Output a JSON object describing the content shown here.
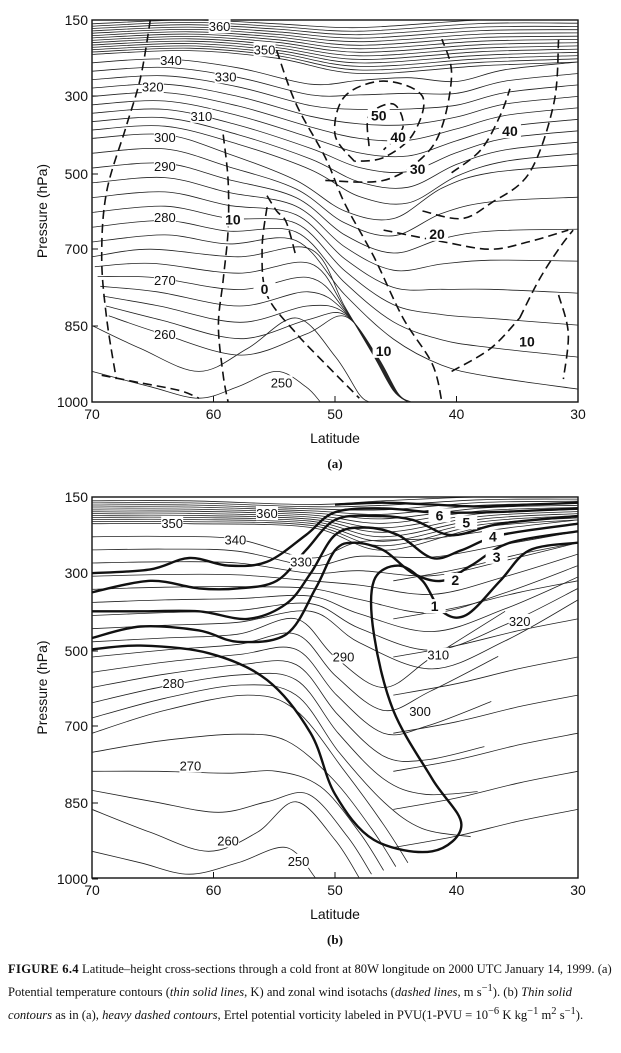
{
  "figure_panels": [
    {
      "panel_label": "(a)",
      "xlabel": "Latitude",
      "ylabel": "Pressure (hPa)",
      "xticks": [
        70,
        60,
        50,
        40,
        30
      ],
      "yticks": [
        150,
        300,
        500,
        700,
        850,
        1000
      ],
      "theta_labels": [
        {
          "text": "360",
          "lat": 59.5,
          "p": 166
        },
        {
          "text": "350",
          "lat": 55.8,
          "p": 212
        },
        {
          "text": "340",
          "lat": 63.5,
          "p": 233
        },
        {
          "text": "330",
          "lat": 59.0,
          "p": 265
        },
        {
          "text": "320",
          "lat": 65.0,
          "p": 285
        },
        {
          "text": "310",
          "lat": 61.0,
          "p": 356
        },
        {
          "text": "300",
          "lat": 64.0,
          "p": 410
        },
        {
          "text": "290",
          "lat": 64.0,
          "p": 485
        },
        {
          "text": "280",
          "lat": 64.0,
          "p": 620
        },
        {
          "text": "270",
          "lat": 64.0,
          "p": 764
        },
        {
          "text": "260",
          "lat": 64.0,
          "p": 870
        },
        {
          "text": "250",
          "lat": 54.4,
          "p": 965
        }
      ],
      "wind_labels": [
        {
          "text": "50",
          "lat": 46.4,
          "p": 355
        },
        {
          "text": "40",
          "lat": 44.8,
          "p": 410
        },
        {
          "text": "30",
          "lat": 43.2,
          "p": 492
        },
        {
          "text": "20",
          "lat": 41.6,
          "p": 665
        },
        {
          "text": "10",
          "lat": 58.4,
          "p": 627
        },
        {
          "text": "0",
          "lat": 55.8,
          "p": 782
        },
        {
          "text": "10",
          "lat": 46.0,
          "p": 903
        },
        {
          "text": "10",
          "lat": 34.2,
          "p": 885
        },
        {
          "text": "40",
          "lat": 35.6,
          "p": 395
        }
      ]
    },
    {
      "panel_label": "(b)",
      "xlabel": "Latitude",
      "ylabel": "Pressure (hPa)",
      "xticks": [
        70,
        60,
        50,
        40,
        30
      ],
      "yticks": [
        150,
        300,
        500,
        700,
        850,
        1000
      ],
      "theta_labels": [
        {
          "text": "360",
          "lat": 55.6,
          "p": 186
        },
        {
          "text": "350",
          "lat": 63.4,
          "p": 205
        },
        {
          "text": "340",
          "lat": 58.2,
          "p": 238
        },
        {
          "text": "330",
          "lat": 52.8,
          "p": 281
        },
        {
          "text": "320",
          "lat": 34.8,
          "p": 428
        },
        {
          "text": "310",
          "lat": 41.5,
          "p": 515
        },
        {
          "text": "300",
          "lat": 43.0,
          "p": 665
        },
        {
          "text": "290",
          "lat": 49.3,
          "p": 520
        },
        {
          "text": "280",
          "lat": 63.3,
          "p": 590
        },
        {
          "text": "270",
          "lat": 61.9,
          "p": 781
        },
        {
          "text": "260",
          "lat": 58.8,
          "p": 928
        },
        {
          "text": "250",
          "lat": 53.0,
          "p": 968
        }
      ],
      "pv_labels": [
        {
          "text": "1",
          "lat": 41.8,
          "p": 390
        },
        {
          "text": "2",
          "lat": 40.1,
          "p": 323
        },
        {
          "text": "3",
          "lat": 36.7,
          "p": 272
        },
        {
          "text": "4",
          "lat": 37.0,
          "p": 232
        },
        {
          "text": "5",
          "lat": 39.2,
          "p": 204
        },
        {
          "text": "6",
          "lat": 41.4,
          "p": 190
        }
      ]
    }
  ],
  "chart_data": [
    {
      "type": "contour",
      "panel": "(a)",
      "xlabel": "Latitude",
      "ylabel": "Pressure (hPa)",
      "xlim": [
        70,
        30
      ],
      "ylim": [
        1000,
        150
      ],
      "fields": [
        {
          "description": "Potential temperature contours (K)",
          "levels": [
            250,
            260,
            270,
            280,
            290,
            300,
            310,
            320,
            330,
            340,
            350,
            360
          ]
        },
        {
          "description": "Zonal wind isotachs (m s-1)",
          "levels": [
            0,
            10,
            20,
            30,
            40,
            50
          ]
        }
      ]
    },
    {
      "type": "contour",
      "panel": "(b)",
      "xlabel": "Latitude",
      "ylabel": "Pressure (hPa)",
      "xlim": [
        70,
        30
      ],
      "ylim": [
        1000,
        150
      ],
      "fields": [
        {
          "description": "Potential temperature contours (K)",
          "levels": [
            250,
            260,
            270,
            280,
            290,
            300,
            310,
            320,
            330,
            340,
            350,
            360
          ]
        },
        {
          "description": "Ertel potential vorticity (PVU)",
          "levels": [
            1,
            2,
            3,
            4,
            5,
            6
          ]
        }
      ]
    }
  ],
  "caption": {
    "title": "FIGURE 6.4",
    "part1": "Latitude–height cross-sections through a cold front at 80W longitude on 2000 UTC January 14, 1999. (a) Potential temperature contours (",
    "em1": "thin solid lines",
    "part2": ", K) and zonal wind isotachs (",
    "em2": "dashed lines",
    "part3": ", m s",
    "sup1": "−1",
    "part4": "). (b) ",
    "em3": "Thin solid contours",
    "part5": " as in (a), ",
    "em4": "heavy dashed contours",
    "part6": ", Ertel potential vorticity labeled in PVU(1-PVU = 10",
    "sup2": "−6",
    "part7": " K kg",
    "sup3": "−1",
    "part8": " m",
    "sup4": "2",
    "part9": " s",
    "sup5": "−1",
    "part10": ")."
  }
}
